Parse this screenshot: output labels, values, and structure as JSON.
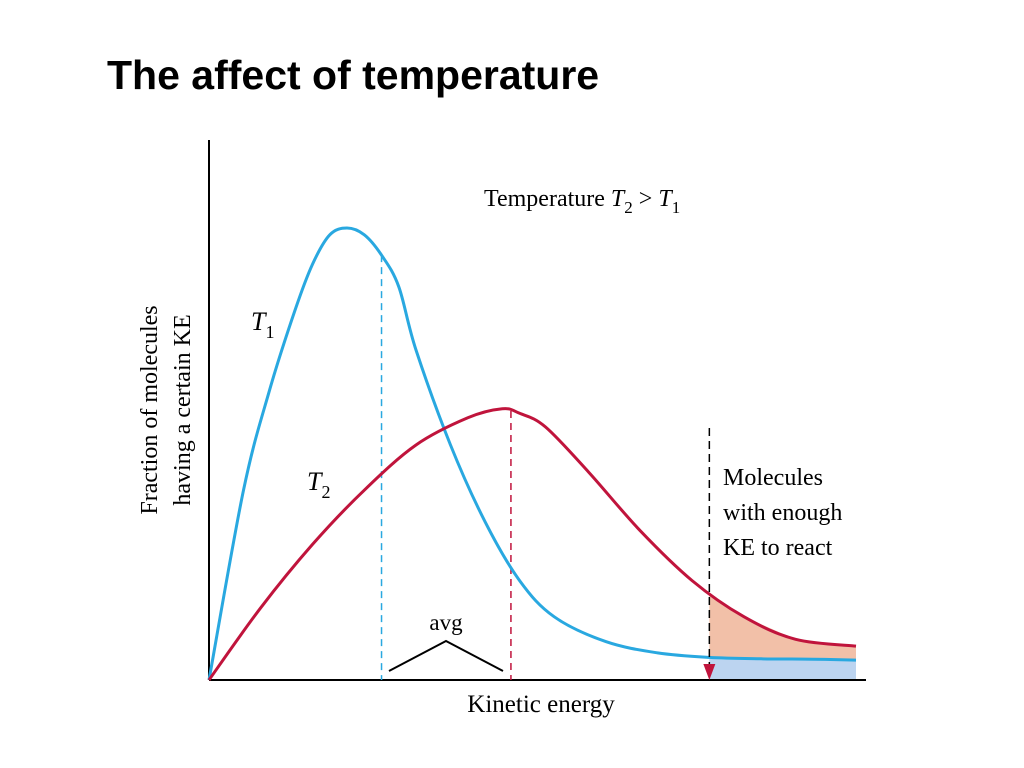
{
  "slide": {
    "title": "The affect of temperature"
  },
  "colors": {
    "t1": "#29a8e0",
    "t2": "#c0143c",
    "shade_t2": "#f2c0a8",
    "shade_t1": "#bcd4f0",
    "axis": "#000000"
  },
  "chart_data": {
    "type": "line",
    "xlabel": "Kinetic energy",
    "ylabel_line1": "Fraction of molecules",
    "ylabel_line2": "having a certain KE",
    "legend_note": {
      "prefix": "Temperature ",
      "var_a": "T",
      "sub_a": "2",
      "op": " > ",
      "var_b": "T",
      "sub_b": "1"
    },
    "series": [
      {
        "name": "T1",
        "label_var": "T",
        "label_sub": "1",
        "x": [
          0,
          0.2,
          0.35,
          0.5,
          0.6,
          0.7,
          0.8,
          0.9,
          1.0,
          1.1,
          1.2,
          1.4,
          1.6,
          1.8,
          2.0,
          2.3,
          2.6,
          2.9,
          3.2,
          3.5,
          3.75
        ],
        "y": [
          0,
          0.42,
          0.64,
          0.82,
          0.92,
          0.985,
          1.0,
          0.985,
          0.94,
          0.87,
          0.73,
          0.52,
          0.35,
          0.22,
          0.14,
          0.085,
          0.06,
          0.05,
          0.047,
          0.046,
          0.044
        ],
        "avg_x": 1.0
      },
      {
        "name": "T2",
        "label_var": "T",
        "label_sub": "2",
        "x": [
          0,
          0.3,
          0.6,
          0.9,
          1.2,
          1.5,
          1.7,
          1.8,
          1.95,
          2.2,
          2.5,
          2.8,
          3.1,
          3.4,
          3.75
        ],
        "y": [
          0,
          0.16,
          0.3,
          0.42,
          0.52,
          0.58,
          0.6,
          0.59,
          0.56,
          0.46,
          0.33,
          0.22,
          0.14,
          0.09,
          0.075
        ],
        "avg_x": 1.75
      }
    ],
    "avg_label": "avg",
    "threshold": {
      "x": 2.9,
      "label_lines": [
        "Molecules",
        "with enough",
        "KE to react"
      ]
    },
    "xlim": [
      0,
      3.75
    ],
    "ylim": [
      0,
      1.0
    ],
    "grid": false
  }
}
